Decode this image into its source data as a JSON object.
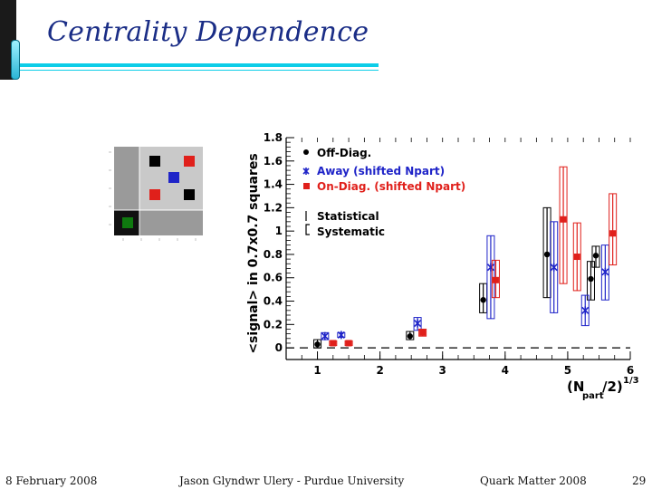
{
  "slide": {
    "title": "Centrality Dependence",
    "footer": {
      "date": "8 February 2008",
      "author": "Jason Glyndwr Ulery - Purdue University",
      "conference": "Quark Matter 2008",
      "page": "29"
    }
  },
  "colors": {
    "title": "#1a2d86",
    "accent_rule": "#0ccde8",
    "off_diag": "#000000",
    "away": "#1f24c8",
    "on_diag": "#e0201b",
    "on_diag_syst": "#c62020"
  },
  "grid_panel": {
    "description_icon": "squares-grid-icon",
    "cells": [
      {
        "color": "#000000"
      },
      {
        "color": "#e0201b"
      },
      {
        "color": "#1f24c8"
      },
      {
        "color": "#e0201b"
      },
      {
        "color": "#000000"
      },
      {
        "color": "#0f7a0f"
      }
    ]
  },
  "chart_data": {
    "type": "scatter",
    "title": "",
    "xlabel": "(N_part/2)^1/3",
    "ylabel": "<signal> in 0.7x0.7 squares",
    "xlim": [
      0.5,
      6
    ],
    "ylim": [
      -0.1,
      1.8
    ],
    "x_ticks": [
      "1",
      "2",
      "3",
      "4",
      "5",
      "6"
    ],
    "y_ticks": [
      "0",
      "0.2",
      "0.4",
      "0.6",
      "0.8",
      "1",
      "1.2",
      "1.4",
      "1.6",
      "1.8"
    ],
    "legend": {
      "placement": "top-left",
      "entries": [
        "Off-Diag.",
        "Away (shifted Npart)",
        "On-Diag. (shifted Npart)"
      ],
      "notes": [
        "Statistical",
        "Systematic"
      ]
    },
    "series": [
      {
        "name": "Off-Diag.",
        "marker": "circle",
        "points": [
          {
            "x": 1.0,
            "y": 0.03,
            "syst": [
              0.0,
              0.07
            ]
          },
          {
            "x": 2.48,
            "y": 0.1,
            "syst": [
              0.07,
              0.14
            ]
          },
          {
            "x": 3.65,
            "y": 0.41,
            "syst": [
              0.3,
              0.55
            ]
          },
          {
            "x": 4.67,
            "y": 0.8,
            "syst": [
              0.43,
              1.2
            ]
          },
          {
            "x": 5.37,
            "y": 0.59,
            "syst": [
              0.41,
              0.74
            ]
          },
          {
            "x": 5.45,
            "y": 0.79,
            "syst": [
              0.69,
              0.87
            ]
          }
        ]
      },
      {
        "name": "Away (shifted Npart)",
        "marker": "star",
        "points": [
          {
            "x": 1.12,
            "y": 0.1,
            "syst": [
              0.07,
              0.13
            ]
          },
          {
            "x": 1.38,
            "y": 0.11,
            "syst": [
              0.09,
              0.13
            ]
          },
          {
            "x": 2.6,
            "y": 0.21,
            "syst": [
              0.15,
              0.26
            ]
          },
          {
            "x": 3.77,
            "y": 0.69,
            "syst": [
              0.25,
              0.96
            ]
          },
          {
            "x": 4.78,
            "y": 0.69,
            "syst": [
              0.3,
              1.08
            ]
          },
          {
            "x": 5.28,
            "y": 0.32,
            "syst": [
              0.19,
              0.45
            ]
          },
          {
            "x": 5.6,
            "y": 0.65,
            "syst": [
              0.41,
              0.88
            ]
          }
        ]
      },
      {
        "name": "On-Diag. (shifted Npart)",
        "marker": "square",
        "points": [
          {
            "x": 1.25,
            "y": 0.04,
            "syst": [
              0.02,
              0.06
            ]
          },
          {
            "x": 1.5,
            "y": 0.04,
            "syst": [
              0.02,
              0.06
            ]
          },
          {
            "x": 2.68,
            "y": 0.13,
            "syst": [
              0.1,
              0.16
            ]
          },
          {
            "x": 3.85,
            "y": 0.58,
            "syst": [
              0.43,
              0.75
            ]
          },
          {
            "x": 4.93,
            "y": 1.1,
            "syst": [
              0.55,
              1.55
            ]
          },
          {
            "x": 5.15,
            "y": 0.78,
            "syst": [
              0.49,
              1.07
            ]
          },
          {
            "x": 5.72,
            "y": 0.98,
            "syst": [
              0.71,
              1.32
            ]
          }
        ]
      }
    ]
  }
}
